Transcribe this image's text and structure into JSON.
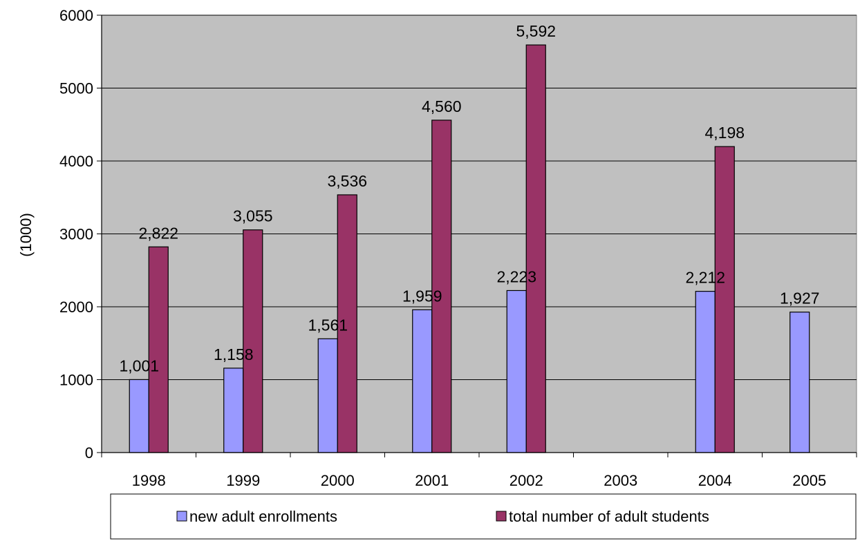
{
  "chart_data": {
    "type": "bar",
    "title": "",
    "xlabel": "",
    "ylabel": "(1000)",
    "ylim": [
      0,
      6000
    ],
    "yticks": [
      0,
      1000,
      2000,
      3000,
      4000,
      5000,
      6000
    ],
    "grid": true,
    "legend_position": "bottom",
    "categories": [
      "1998",
      "1999",
      "2000",
      "2001",
      "2002",
      "2003",
      "2004",
      "2005"
    ],
    "series": [
      {
        "name": "new adult enrollments",
        "color": "#9999FF",
        "values": [
          1001,
          1158,
          1561,
          1959,
          2223,
          null,
          2212,
          1927
        ],
        "labels": [
          "1,001",
          "1,158",
          "1,561",
          "1,959",
          "2,223",
          null,
          "2,212",
          "1,927"
        ]
      },
      {
        "name": "total number of adult students",
        "color": "#993366",
        "values": [
          2822,
          3055,
          3536,
          4560,
          5592,
          null,
          4198,
          null
        ],
        "labels": [
          "2,822",
          "3,055",
          "3,536",
          "4,560",
          "5,592",
          null,
          "4,198",
          null
        ]
      }
    ],
    "plot_background": "#C0C0C0"
  }
}
